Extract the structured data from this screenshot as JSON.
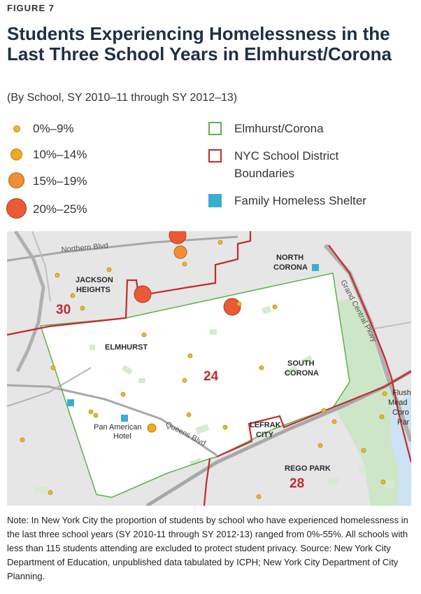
{
  "figure_label": "FIGURE 7",
  "title": "Students Experiencing Homelessness in the Last Three School Years in Elmhurst/Corona",
  "subtitle": "(By School, SY 2010–11 through SY 2012–13)",
  "legend": {
    "size_classes": [
      {
        "label": "0%–9%",
        "color": "#e8b92c"
      },
      {
        "label": "10%–14%",
        "color": "#f2a91f"
      },
      {
        "label": "15%–19%",
        "color": "#f08f35"
      },
      {
        "label": "20%–25%",
        "color": "#ea5a36"
      }
    ],
    "elmhurst_corona": {
      "label": "Elmhurst/Corona",
      "color": "#5db14a"
    },
    "district_boundaries": {
      "label": "NYC School District Boundaries",
      "color": "#c42a2f"
    },
    "shelter": {
      "label": "Family Homeless Shelter",
      "color": "#3aaed0"
    }
  },
  "map": {
    "roads": {
      "northern_blvd": "Northern Blvd",
      "queens_blvd": "Queens Blvd",
      "grand_central_pkwy": "Grand Central Pkwy"
    },
    "neighborhoods": {
      "north_corona_line1": "NORTH",
      "north_corona_line2": "CORONA",
      "jackson_heights_line1": "JACKSON",
      "jackson_heights_line2": "HEIGHTS",
      "elmhurst": "ELMHURST",
      "south_corona_line1": "SOUTH",
      "south_corona_line2": "CORONA",
      "lefrak_line1": "LEFRAK",
      "lefrak_line2": "CITY",
      "rego_park": "REGO PARK"
    },
    "places": {
      "pan_american_line1": "Pan American",
      "pan_american_line2": "Hotel",
      "flushing_line1": "Flush",
      "flushing_line2": "Mead",
      "flushing_line3": "Coro",
      "flushing_line4": "Par"
    },
    "districts": {
      "d30": "30",
      "d24": "24",
      "d28": "28"
    }
  },
  "note": "Note: In New York City the proportion of students by school who have experienced homelessness in the last three school years (SY 2010-11 through SY 2012-13) ranged from 0%-55%. All schools with less than 115 students attending are excluded to protect student privacy. Source: New York City Department of Education, unpublished data tabulated by ICPH; New York City Department of City Planning."
}
